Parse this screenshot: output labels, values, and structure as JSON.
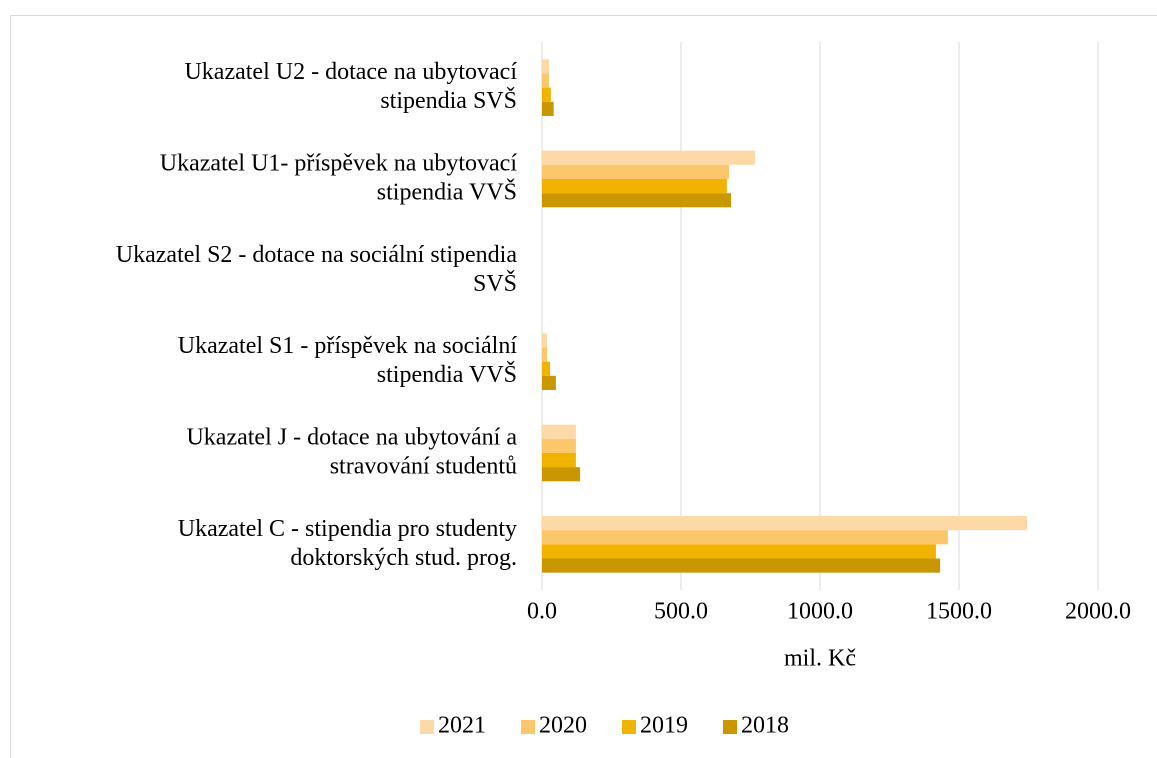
{
  "chart_data": {
    "type": "bar",
    "orientation": "horizontal",
    "categories": [
      "Ukazatel U2 - dotace na ubytovací\nstipendia SVŠ",
      "Ukazatel U1- příspěvek na ubytovací\nstipendia VVŠ",
      "Ukazatel S2 - dotace na sociální stipendia\nSVŠ",
      "Ukazatel S1 - příspěvek na sociální\nstipendia VVŠ",
      "Ukazatel J - dotace na ubytování a\nstravování studentů",
      "Ukazatel C - stipendia pro studenty\ndoktorských stud. prog."
    ],
    "series": [
      {
        "name": "2021",
        "color": "#fdd9a8",
        "values": [
          25,
          766,
          0,
          18,
          122,
          1745
        ]
      },
      {
        "name": "2020",
        "color": "#fbc76a",
        "values": [
          25,
          673,
          0,
          18,
          122,
          1460
        ]
      },
      {
        "name": "2019",
        "color": "#f0b400",
        "values": [
          32,
          665,
          0,
          29,
          122,
          1417
        ]
      },
      {
        "name": "2018",
        "color": "#c99800",
        "values": [
          42,
          680,
          0,
          50,
          137,
          1432
        ]
      }
    ],
    "xlabel": "mil. Kč",
    "xlim": [
      0,
      2000
    ],
    "xticks": [
      {
        "value": 0,
        "label": "0.0"
      },
      {
        "value": 500,
        "label": "500.0"
      },
      {
        "value": 1000,
        "label": "1000.0"
      },
      {
        "value": 1500,
        "label": "1500.0"
      },
      {
        "value": 2000,
        "label": "2000.0"
      }
    ],
    "grid": true,
    "legend": "bottom"
  }
}
